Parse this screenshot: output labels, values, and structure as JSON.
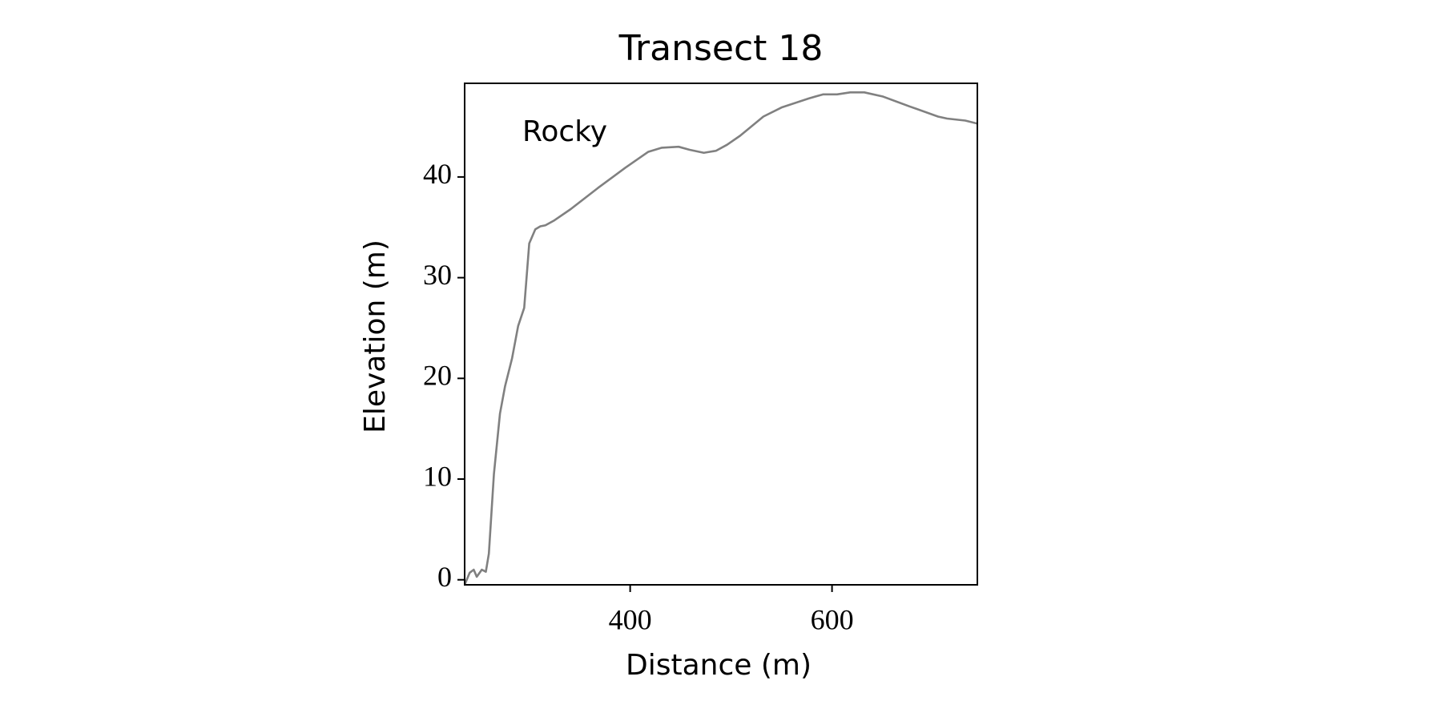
{
  "chart_data": {
    "type": "line",
    "title": "Transect 18",
    "xlabel": "Distance (m)",
    "ylabel": "Elevation (m)",
    "annotation": "Rocky",
    "x": [
      236,
      241,
      245,
      248,
      253,
      257,
      260,
      265,
      271,
      276,
      283,
      289,
      295,
      300,
      306,
      311,
      316,
      325,
      341,
      368,
      395,
      418,
      431,
      448,
      459,
      473,
      485,
      496,
      509,
      532,
      550,
      577,
      591,
      605,
      618,
      632,
      650,
      677,
      705,
      714,
      732,
      744
    ],
    "series": [
      {
        "color": "#808080",
        "values": [
          -0.5,
          0.7,
          1.0,
          0.3,
          1.0,
          0.8,
          2.6,
          10.5,
          16.5,
          19.2,
          22,
          25.2,
          27,
          33.4,
          34.8,
          35.1,
          35.2,
          35.7,
          36.8,
          38.9,
          40.9,
          42.5,
          42.9,
          43.0,
          42.7,
          42.4,
          42.6,
          43.2,
          44.1,
          46.0,
          46.9,
          47.8,
          48.2,
          48.2,
          48.4,
          48.4,
          48.0,
          47.0,
          46.0,
          45.8,
          45.6,
          45.3
        ]
      }
    ],
    "xlim": [
      236,
      744
    ],
    "ylim": [
      -0.5,
      49.3
    ],
    "xticks": [
      400,
      600
    ],
    "yticks": [
      0,
      10,
      20,
      30,
      40
    ],
    "grid": false
  }
}
